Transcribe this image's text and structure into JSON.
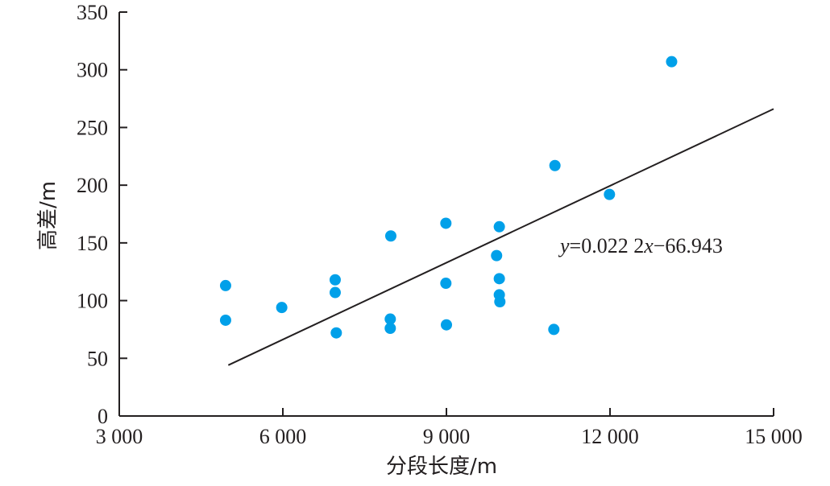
{
  "chart_data": {
    "type": "scatter",
    "xlabel": "分段长度/m",
    "ylabel": "高差/m",
    "xlim": [
      3000,
      15000
    ],
    "ylim": [
      0,
      350
    ],
    "xticks": [
      3000,
      6000,
      9000,
      12000,
      15000
    ],
    "xtick_labels": [
      "3 000",
      "6 000",
      "9 000",
      "12 000",
      "15 000"
    ],
    "yticks": [
      0,
      50,
      100,
      150,
      200,
      250,
      300,
      350
    ],
    "ytick_labels": [
      "0",
      "50",
      "100",
      "150",
      "200",
      "250",
      "300",
      "350"
    ],
    "grid": false,
    "point_color": "#00a0e9",
    "line_color": "#231f20",
    "series": [
      {
        "x": [
          4950,
          4950,
          5980,
          6960,
          6960,
          6980,
          7980,
          7970,
          7970,
          8990,
          8990,
          9000,
          9920,
          9970,
          9970,
          9970,
          9980,
          10970,
          10990,
          11990,
          13130
        ],
        "y": [
          113,
          83,
          94,
          118,
          107,
          72,
          156,
          84,
          76,
          167,
          115,
          79,
          139,
          164,
          119,
          105,
          99,
          75,
          217,
          192,
          307
        ]
      }
    ],
    "trendline": {
      "x": [
        5000,
        15000
      ],
      "y": [
        44.057,
        266.057
      ],
      "label_parts": [
        "y",
        "=0.022 2",
        "x",
        "−66.943"
      ]
    }
  }
}
